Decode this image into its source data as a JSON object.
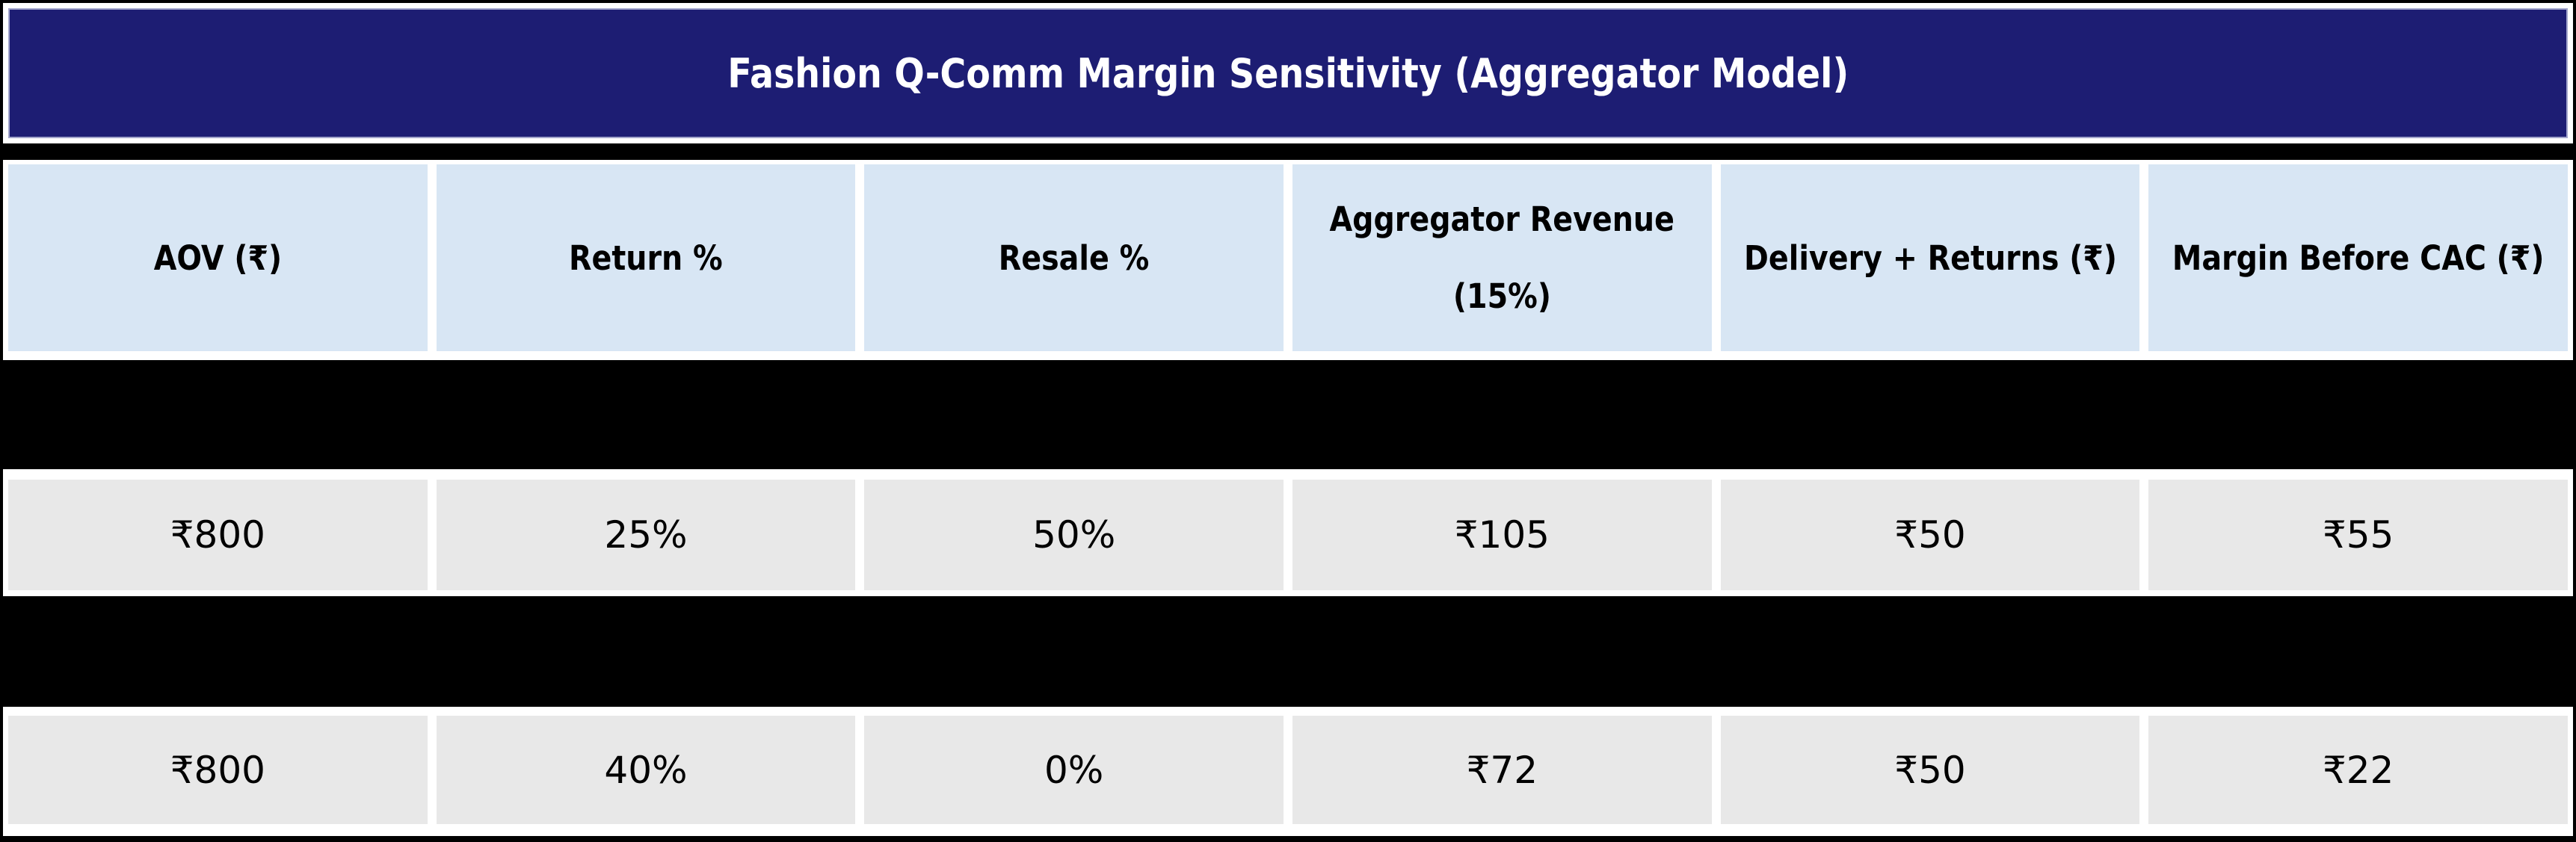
{
  "chart_data": {
    "type": "table",
    "title": "Fashion Q-Comm Margin Sensitivity (Aggregator Model)",
    "columns": [
      {
        "label": "AOV (₹)"
      },
      {
        "label": "Return %"
      },
      {
        "label": "Resale %"
      },
      {
        "label": "Aggregator Revenue (15%)",
        "label_line1": "Aggregator Revenue",
        "label_line2": "(15%)"
      },
      {
        "label": "Delivery + Returns (₹)"
      },
      {
        "label": "Margin Before CAC (₹)"
      }
    ],
    "rows": [
      [
        "₹800",
        "25%",
        "50%",
        "₹105",
        "₹50",
        "₹55"
      ],
      [
        "₹800",
        "40%",
        "0%",
        "₹72",
        "₹50",
        "₹22"
      ]
    ],
    "rows_numeric": [
      {
        "aov": 800,
        "return_pct": 25,
        "resale_pct": 50,
        "aggregator_revenue": 105,
        "delivery_plus_returns": 50,
        "margin_before_cac": 55
      },
      {
        "aov": 800,
        "return_pct": 40,
        "resale_pct": 0,
        "aggregator_revenue": 72,
        "delivery_plus_returns": 50,
        "margin_before_cac": 22
      }
    ],
    "layout": {
      "header_position": "top",
      "redacted_black_bands": 2,
      "cell_spacing": "white gaps between cells",
      "legend": "none",
      "grid": "off"
    }
  },
  "colors": {
    "outer_border": "#000000",
    "title_background": "#1d1d73",
    "title_border": "#a3a6cc",
    "title_text": "#ffffff",
    "separator_band": "#000000",
    "header_cell_background": "#d8e6f4",
    "header_text": "#000000",
    "redacted_band": "#000000",
    "data_cell_background": "#e8e8e8",
    "data_text": "#000000",
    "background": "#ffffff"
  }
}
